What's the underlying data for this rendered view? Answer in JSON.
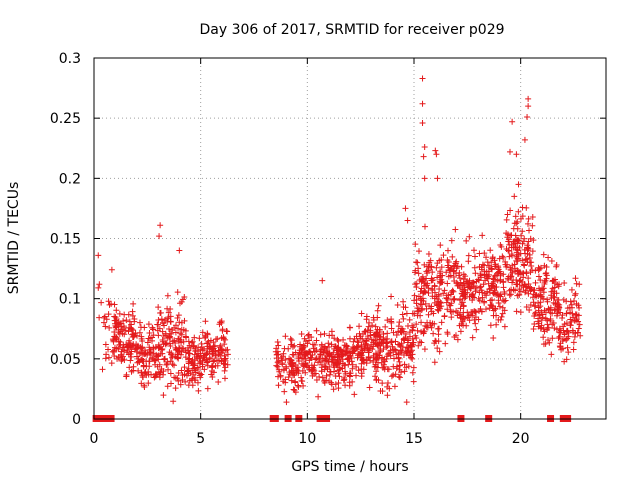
{
  "chart_data": {
    "type": "scatter",
    "title": "Day 306 of 2017, SRMTID for receiver p029",
    "xlabel": "GPS time / hours",
    "ylabel": "SRMTID / TECUs",
    "xlim": [
      0,
      24
    ],
    "ylim": [
      0,
      0.3
    ],
    "x_ticks": [
      0,
      5,
      10,
      15,
      20
    ],
    "x_tick_labels": [
      "0",
      "5",
      "10",
      "15",
      "20"
    ],
    "y_ticks": [
      0,
      0.05,
      0.1,
      0.15,
      0.2,
      0.25,
      0.3
    ],
    "y_tick_labels": [
      "0",
      "0.05",
      "0.1",
      "0.15",
      "0.2",
      "0.25",
      "0.3"
    ],
    "grid": true,
    "marker": "plus",
    "series_color": "#e41a1c",
    "envelope": [
      {
        "x0": 0.15,
        "x1": 0.85,
        "mean": 0.08,
        "spread": 0.035,
        "n": 20
      },
      {
        "x0": 0.85,
        "x1": 2.0,
        "mean": 0.066,
        "spread": 0.025,
        "n": 120
      },
      {
        "x0": 2.0,
        "x1": 3.0,
        "mean": 0.055,
        "spread": 0.025,
        "n": 100
      },
      {
        "x0": 3.0,
        "x1": 4.3,
        "mean": 0.062,
        "spread": 0.035,
        "n": 140
      },
      {
        "x0": 4.3,
        "x1": 5.2,
        "mean": 0.05,
        "spread": 0.022,
        "n": 90
      },
      {
        "x0": 5.2,
        "x1": 6.3,
        "mean": 0.056,
        "spread": 0.02,
        "n": 100
      },
      {
        "x0": 8.5,
        "x1": 9.6,
        "mean": 0.045,
        "spread": 0.018,
        "n": 90
      },
      {
        "x0": 9.6,
        "x1": 10.8,
        "mean": 0.05,
        "spread": 0.02,
        "n": 100
      },
      {
        "x0": 10.8,
        "x1": 12.3,
        "mean": 0.048,
        "spread": 0.02,
        "n": 160
      },
      {
        "x0": 12.3,
        "x1": 13.5,
        "mean": 0.06,
        "spread": 0.025,
        "n": 140
      },
      {
        "x0": 13.5,
        "x1": 15.0,
        "mean": 0.06,
        "spread": 0.03,
        "n": 150
      },
      {
        "x0": 15.0,
        "x1": 16.5,
        "mean": 0.1,
        "spread": 0.035,
        "n": 160
      },
      {
        "x0": 16.5,
        "x1": 18.0,
        "mean": 0.105,
        "spread": 0.035,
        "n": 160
      },
      {
        "x0": 18.0,
        "x1": 19.3,
        "mean": 0.11,
        "spread": 0.03,
        "n": 140
      },
      {
        "x0": 19.3,
        "x1": 20.6,
        "mean": 0.135,
        "spread": 0.04,
        "n": 160
      },
      {
        "x0": 20.6,
        "x1": 21.8,
        "mean": 0.095,
        "spread": 0.03,
        "n": 130
      },
      {
        "x0": 21.8,
        "x1": 22.3,
        "mean": 0.075,
        "spread": 0.025,
        "n": 40
      },
      {
        "x0": 22.3,
        "x1": 22.8,
        "mean": 0.085,
        "spread": 0.025,
        "n": 40
      }
    ],
    "peaks": [
      {
        "x": 0.2,
        "y": 0.136
      },
      {
        "x": 0.25,
        "y": 0.112
      },
      {
        "x": 0.2,
        "y": 0.109
      },
      {
        "x": 3.1,
        "y": 0.161
      },
      {
        "x": 3.05,
        "y": 0.152
      },
      {
        "x": 4.0,
        "y": 0.14
      },
      {
        "x": 10.7,
        "y": 0.115
      },
      {
        "x": 14.6,
        "y": 0.175
      },
      {
        "x": 14.7,
        "y": 0.165
      },
      {
        "x": 15.4,
        "y": 0.283
      },
      {
        "x": 15.4,
        "y": 0.262
      },
      {
        "x": 15.4,
        "y": 0.246
      },
      {
        "x": 15.5,
        "y": 0.226
      },
      {
        "x": 15.45,
        "y": 0.218
      },
      {
        "x": 15.5,
        "y": 0.2
      },
      {
        "x": 16.0,
        "y": 0.223
      },
      {
        "x": 16.05,
        "y": 0.22
      },
      {
        "x": 16.1,
        "y": 0.2
      },
      {
        "x": 19.6,
        "y": 0.247
      },
      {
        "x": 19.5,
        "y": 0.222
      },
      {
        "x": 19.8,
        "y": 0.22
      },
      {
        "x": 20.35,
        "y": 0.266
      },
      {
        "x": 20.35,
        "y": 0.26
      },
      {
        "x": 20.3,
        "y": 0.251
      },
      {
        "x": 20.2,
        "y": 0.232
      },
      {
        "x": 19.9,
        "y": 0.195
      },
      {
        "x": 19.7,
        "y": 0.185
      }
    ],
    "gap_markers": [
      0.1,
      0.3,
      0.5,
      0.7,
      0.8,
      8.4,
      8.5,
      9.1,
      9.6,
      10.6,
      10.9,
      17.2,
      18.5,
      21.4,
      22.0,
      22.2
    ]
  }
}
